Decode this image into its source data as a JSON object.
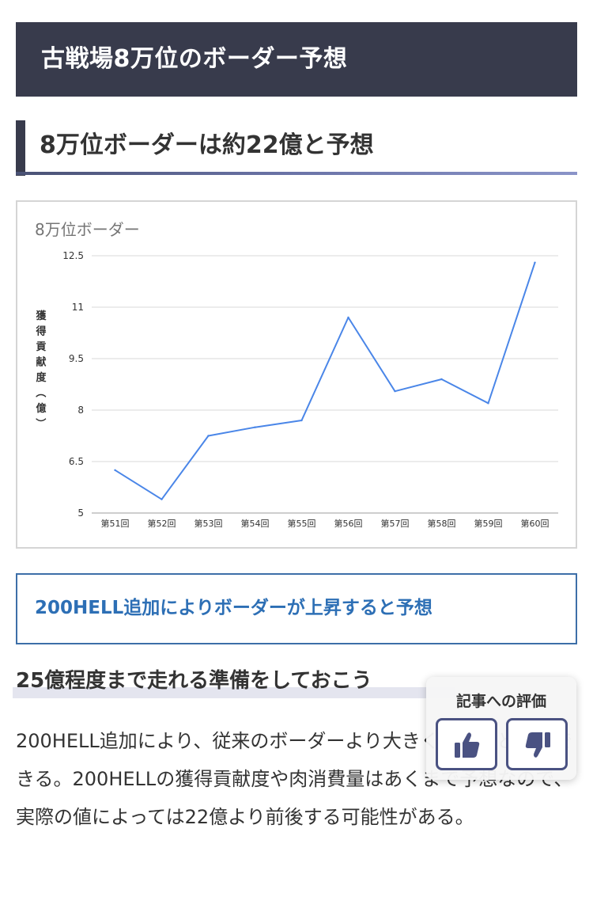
{
  "section_title": "古戦場8万位のボーダー予想",
  "subsection_title": "8万位ボーダーは約22億と予想",
  "chart_data": {
    "type": "line",
    "title": "8万位ボーダー",
    "ylabel": "獲得貢献度（億）",
    "xlabel": "",
    "categories": [
      "第51回",
      "第52回",
      "第53回",
      "第54回",
      "第55回",
      "第56回",
      "第57回",
      "第58回",
      "第59回",
      "第60回"
    ],
    "series": [
      {
        "values": [
          6.25,
          5.4,
          7.25,
          7.5,
          7.7,
          10.7,
          8.55,
          8.9,
          8.2,
          12.3
        ]
      }
    ],
    "ylim": [
      5,
      12.5
    ],
    "yticks": [
      "12.5",
      "11",
      "9.5",
      "8",
      "6.5",
      "5"
    ],
    "grid": true,
    "line_color": "#4a86e8"
  },
  "callout_text": "200HELL追加によりボーダーが上昇すると予想",
  "heading4": "25億程度まで走れる準備をしておこう",
  "paragraph": "200HELL追加により、従来のボーダーより大きく伸びると推測できる。200HELLの獲得貢献度や肉消費量はあくまで予想なので、実際の値によっては22億より前後する可能性がある。",
  "rating": {
    "title": "記事への評価",
    "like_icon": "thumbs-up-icon",
    "dislike_icon": "thumbs-down-icon"
  }
}
